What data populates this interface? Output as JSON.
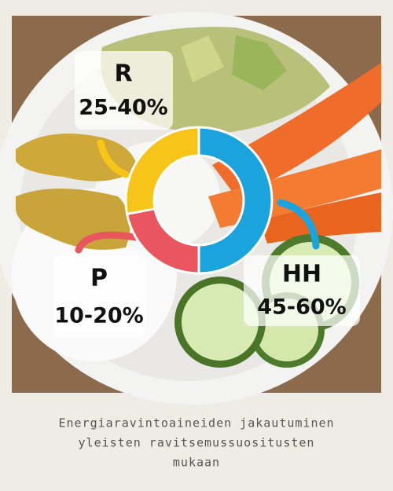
{
  "chart_data": {
    "type": "donut",
    "categories": [
      "HH",
      "P",
      "R"
    ],
    "ranges": [
      "45-60%",
      "10-20%",
      "25-40%"
    ],
    "values": [
      50,
      22,
      28
    ],
    "colors": [
      "#1aa3dc",
      "#e9565f",
      "#f7c51a"
    ],
    "caption": [
      "Energiaravintoaineiden jakautuminen",
      "yleisten ravitsemussuositusten",
      "mukaan"
    ]
  }
}
